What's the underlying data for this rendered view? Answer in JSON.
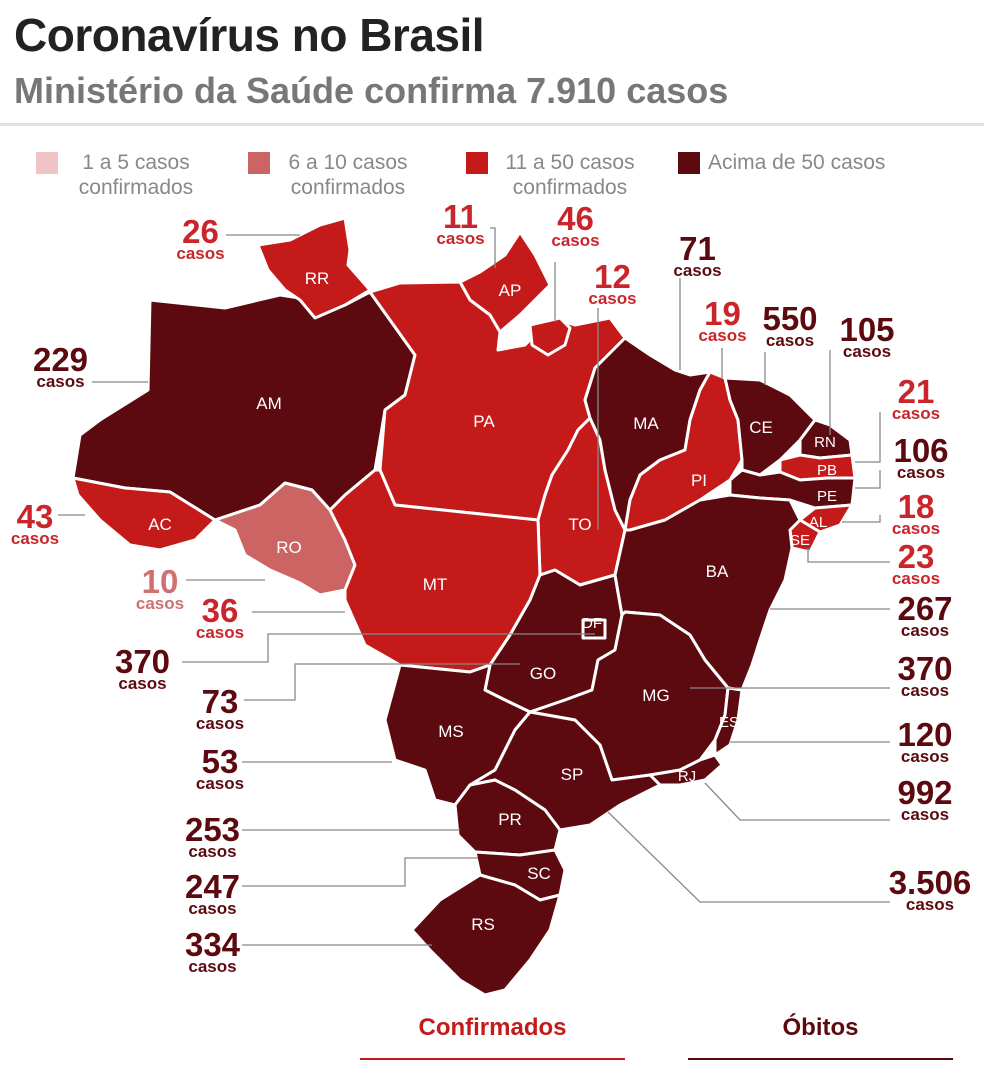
{
  "title": "Coronavírus no Brasil",
  "subtitle": "Ministério da Saúde confirma 7.910 casos",
  "colors": {
    "range_1_5": "#f0c4c4",
    "range_6_10": "#cc6464",
    "range_11_50": "#c41a1a",
    "range_over_50": "#5c0a0f",
    "tab_confirmed": "#c41a1a",
    "tab_deaths": "#5c0a0f"
  },
  "legend": [
    {
      "label": "1 a 5 casos confirmados",
      "color": "#f0c4c4"
    },
    {
      "label": "6 a 10 casos confirmados",
      "color": "#cc6464"
    },
    {
      "label": "11 a 50 casos confirmados",
      "color": "#c41a1a"
    },
    {
      "label": "Acima de 50 casos",
      "color": "#5c0a0f"
    }
  ],
  "unit_label": "casos",
  "states": [
    {
      "code": "RR",
      "cases": "26"
    },
    {
      "code": "AP",
      "cases": "11"
    },
    {
      "code": "PA",
      "cases": "46"
    },
    {
      "code": "TO",
      "cases": "12"
    },
    {
      "code": "MA",
      "cases": "71"
    },
    {
      "code": "PI",
      "cases": "19"
    },
    {
      "code": "CE",
      "cases": "550"
    },
    {
      "code": "RN",
      "cases": "105"
    },
    {
      "code": "PB",
      "cases": "21"
    },
    {
      "code": "PE",
      "cases": "106"
    },
    {
      "code": "AL",
      "cases": "18"
    },
    {
      "code": "SE",
      "cases": "23"
    },
    {
      "code": "BA",
      "cases": "267"
    },
    {
      "code": "MG",
      "cases": "370"
    },
    {
      "code": "ES",
      "cases": "120"
    },
    {
      "code": "RJ",
      "cases": "992"
    },
    {
      "code": "SP",
      "cases": "3.506"
    },
    {
      "code": "AM",
      "cases": "229"
    },
    {
      "code": "AC",
      "cases": "43"
    },
    {
      "code": "RO",
      "cases": "10"
    },
    {
      "code": "MT",
      "cases": "36"
    },
    {
      "code": "DF",
      "cases": "370"
    },
    {
      "code": "GO",
      "cases": "73"
    },
    {
      "code": "MS",
      "cases": "53"
    },
    {
      "code": "PR",
      "cases": "253"
    },
    {
      "code": "SC",
      "cases": "247"
    },
    {
      "code": "RS",
      "cases": "334"
    }
  ],
  "tabs": {
    "confirmed": "Confirmados",
    "deaths": "Óbitos"
  }
}
